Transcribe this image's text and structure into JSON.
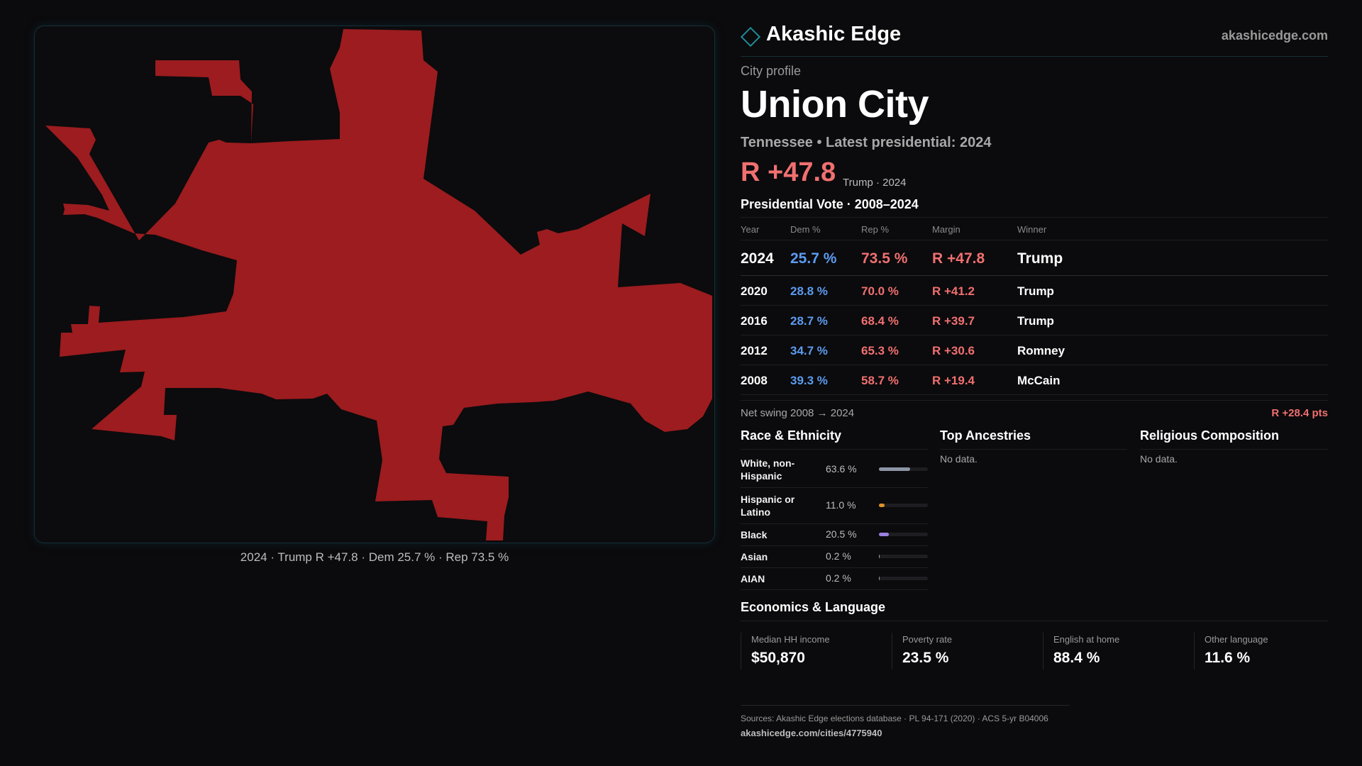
{
  "brand": {
    "name": "Akashic Edge",
    "url": "akashicedge.com"
  },
  "map": {
    "caption": "2024 · Trump R +47.8 · Dem 25.7 % · Rep 73.5 %",
    "fill_color": "#9c1c1f"
  },
  "profile": {
    "kicker": "City profile",
    "city": "Union City",
    "subline": "Tennessee • Latest presidential: 2024",
    "headline_margin": "R +47.8",
    "headline_note": "Trump · 2024"
  },
  "vote": {
    "title": "Presidential Vote · 2008–2024",
    "columns": [
      "Year",
      "Dem %",
      "Rep %",
      "Margin",
      "Winner"
    ],
    "rows": [
      {
        "year": "2024",
        "dem": "25.7 %",
        "rep": "73.5 %",
        "margin": "R +47.8",
        "winner": "Trump"
      },
      {
        "year": "2020",
        "dem": "28.8 %",
        "rep": "70.0 %",
        "margin": "R +41.2",
        "winner": "Trump"
      },
      {
        "year": "2016",
        "dem": "28.7 %",
        "rep": "68.4 %",
        "margin": "R +39.7",
        "winner": "Trump"
      },
      {
        "year": "2012",
        "dem": "34.7 %",
        "rep": "65.3 %",
        "margin": "R +30.6",
        "winner": "Romney"
      },
      {
        "year": "2008",
        "dem": "39.3 %",
        "rep": "58.7 %",
        "margin": "R +19.4",
        "winner": "McCain"
      }
    ],
    "swing_label": "Net swing 2008 → 2024",
    "swing_value": "R +28.4 pts"
  },
  "race": {
    "title": "Race & Ethnicity",
    "items": [
      {
        "label": "White, non-Hispanic",
        "pct": "63.6 %",
        "value": 63.6,
        "color": "#8c95a6"
      },
      {
        "label": "Hispanic or Latino",
        "pct": "11.0 %",
        "value": 11.0,
        "color": "#e0922a"
      },
      {
        "label": "Black",
        "pct": "20.5 %",
        "value": 20.5,
        "color": "#9a7fe0"
      },
      {
        "label": "Asian",
        "pct": "0.2 %",
        "value": 0.2,
        "color": "#8c95a6"
      },
      {
        "label": "AIAN",
        "pct": "0.2 %",
        "value": 0.2,
        "color": "#8c95a6"
      }
    ]
  },
  "ancestries": {
    "title": "Top Ancestries",
    "empty": "No data."
  },
  "religion": {
    "title": "Religious Composition",
    "empty": "No data."
  },
  "economics": {
    "title": "Economics & Language",
    "cells": [
      {
        "label": "Median HH income",
        "value": "$50,870"
      },
      {
        "label": "Poverty rate",
        "value": "23.5 %"
      },
      {
        "label": "English at home",
        "value": "88.4 %"
      },
      {
        "label": "Other language",
        "value": "11.6 %"
      }
    ]
  },
  "footer": {
    "sources": "Sources: Akashic Edge elections database · PL 94-171 (2020) · ACS 5-yr B04006",
    "url": "akashicedge.com/cities/4775940"
  }
}
